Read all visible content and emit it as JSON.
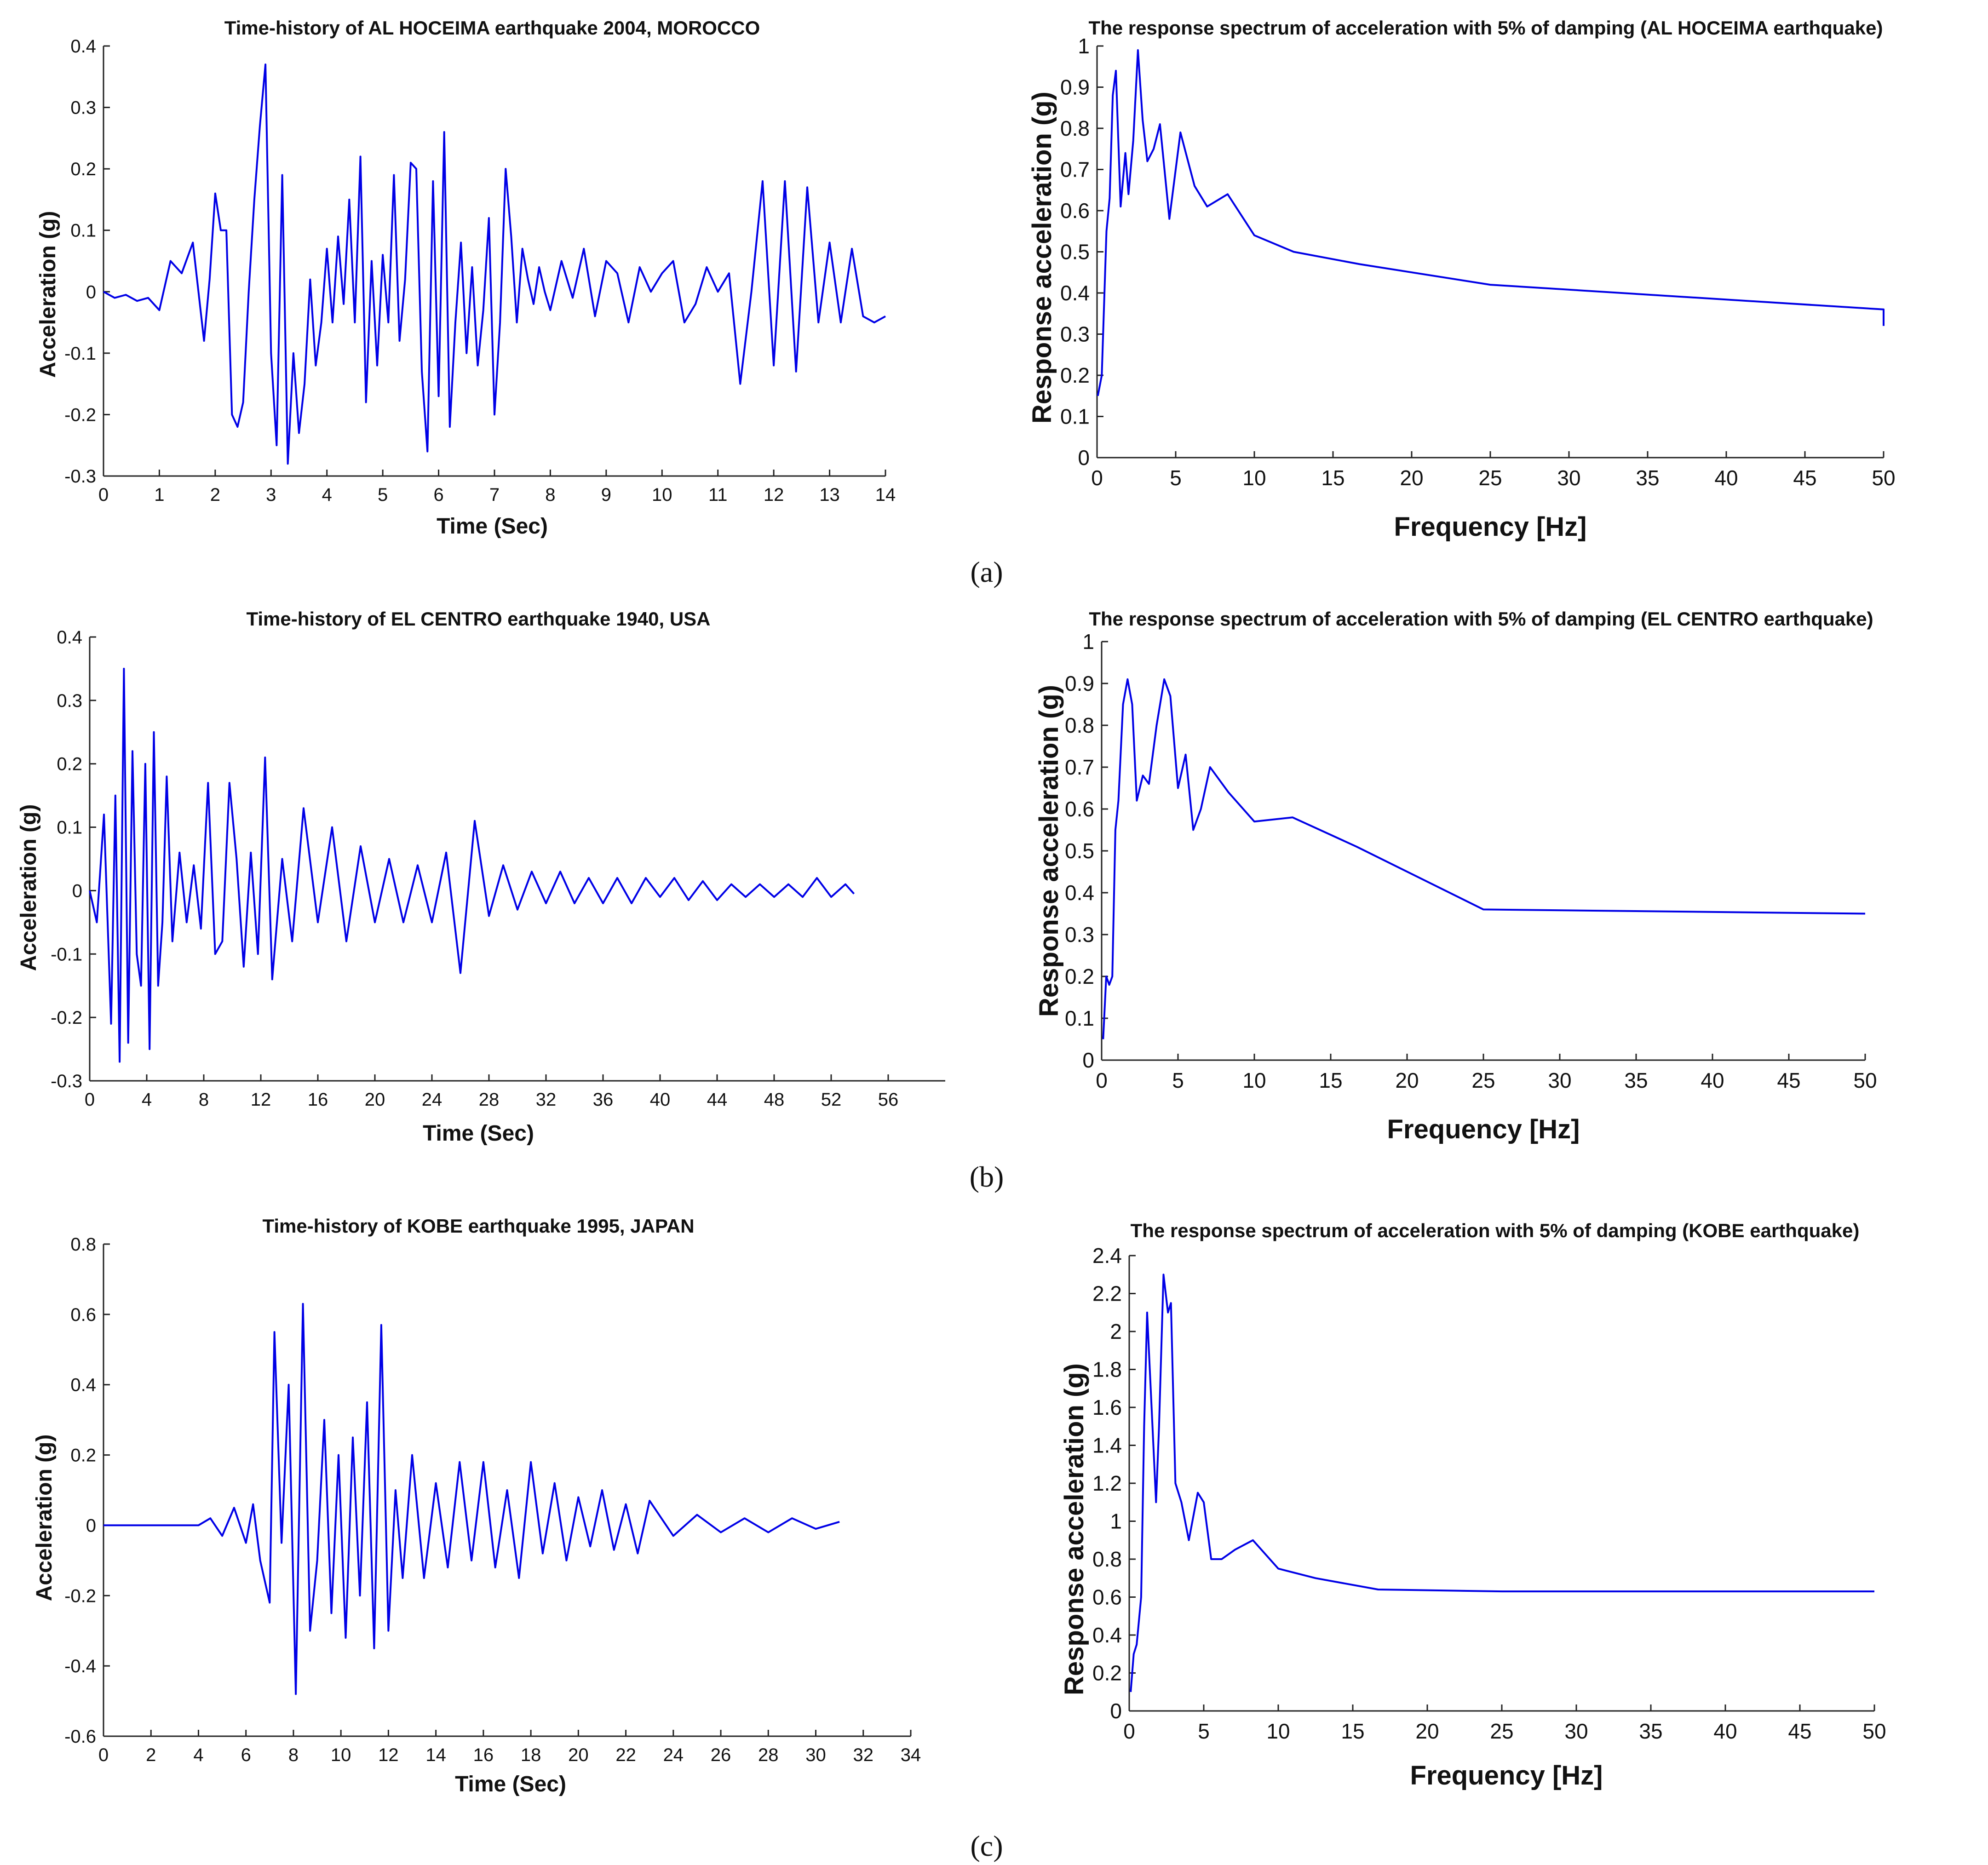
{
  "chart_data": [
    {
      "id": "th-alhoceima",
      "type": "line",
      "title": "Time-history of AL HOCEIMA earthquake 2004, MOROCCO",
      "xlabel": "Time (Sec)",
      "ylabel": "Acceleration (g)",
      "xlim": [
        0,
        14
      ],
      "ylim": [
        -0.3,
        0.4
      ],
      "xticks": [
        0,
        1,
        2,
        3,
        4,
        5,
        6,
        7,
        8,
        9,
        10,
        11,
        12,
        13,
        14
      ],
      "yticks": [
        -0.3,
        -0.2,
        -0.1,
        0,
        0.1,
        0.2,
        0.3,
        0.4
      ],
      "ytick_labels": [
        "-0.3",
        "-0.2",
        "-0.1",
        "0",
        "0.1",
        "0.2",
        "0.3",
        "0.4"
      ],
      "color": "#0000e6",
      "series": [
        {
          "name": "acceleration",
          "x": [
            0,
            0.2,
            0.4,
            0.6,
            0.8,
            1.0,
            1.2,
            1.4,
            1.6,
            1.8,
            1.9,
            2.0,
            2.1,
            2.2,
            2.3,
            2.4,
            2.5,
            2.6,
            2.7,
            2.8,
            2.9,
            3.0,
            3.1,
            3.2,
            3.3,
            3.4,
            3.5,
            3.6,
            3.7,
            3.8,
            3.9,
            4.0,
            4.1,
            4.2,
            4.3,
            4.4,
            4.5,
            4.6,
            4.7,
            4.8,
            4.9,
            5.0,
            5.1,
            5.2,
            5.3,
            5.4,
            5.5,
            5.6,
            5.7,
            5.8,
            5.9,
            6.0,
            6.1,
            6.2,
            6.3,
            6.4,
            6.5,
            6.6,
            6.7,
            6.8,
            6.9,
            7.0,
            7.1,
            7.2,
            7.3,
            7.4,
            7.5,
            7.6,
            7.7,
            7.8,
            7.9,
            8.0,
            8.2,
            8.4,
            8.6,
            8.8,
            9.0,
            9.2,
            9.4,
            9.6,
            9.8,
            10.0,
            10.2,
            10.4,
            10.6,
            10.8,
            11.0,
            11.2,
            11.4,
            11.6,
            11.8,
            12.0,
            12.2,
            12.4,
            12.6,
            12.8,
            13.0,
            13.2,
            13.4,
            13.6,
            13.8,
            14.0
          ],
          "y": [
            0,
            -0.01,
            -0.005,
            -0.015,
            -0.01,
            -0.03,
            0.05,
            0.03,
            0.08,
            -0.08,
            0.02,
            0.16,
            0.1,
            0.1,
            -0.2,
            -0.22,
            -0.18,
            0.0,
            0.15,
            0.27,
            0.37,
            -0.1,
            -0.25,
            0.19,
            -0.28,
            -0.1,
            -0.23,
            -0.15,
            0.02,
            -0.12,
            -0.05,
            0.07,
            -0.05,
            0.09,
            -0.02,
            0.15,
            -0.05,
            0.22,
            -0.18,
            0.05,
            -0.12,
            0.06,
            -0.05,
            0.19,
            -0.08,
            0.02,
            0.21,
            0.2,
            -0.13,
            -0.26,
            0.18,
            -0.17,
            0.26,
            -0.22,
            -0.05,
            0.08,
            -0.1,
            0.04,
            -0.12,
            -0.03,
            0.12,
            -0.2,
            -0.05,
            0.2,
            0.09,
            -0.05,
            0.07,
            0.02,
            -0.02,
            0.04,
            0.0,
            -0.03,
            0.05,
            -0.01,
            0.07,
            -0.04,
            0.05,
            0.03,
            -0.05,
            0.04,
            0.0,
            0.03,
            0.05,
            -0.05,
            -0.02,
            0.04,
            0.0,
            0.03,
            -0.15,
            0.0,
            0.18,
            -0.12,
            0.18,
            -0.13,
            0.17,
            -0.05,
            0.08,
            -0.05,
            0.07,
            -0.04,
            -0.05,
            -0.04
          ]
        }
      ]
    },
    {
      "id": "rs-alhoceima",
      "type": "line",
      "title": "The response spectrum of acceleration with 5% of damping (AL HOCEIMA earthquake)",
      "xlabel": "Frequency [Hz]",
      "ylabel": "Response acceleration (g)",
      "xlim": [
        0,
        50
      ],
      "ylim": [
        0,
        1
      ],
      "xticks": [
        0,
        5,
        10,
        15,
        20,
        25,
        30,
        35,
        40,
        45,
        50
      ],
      "yticks": [
        0,
        0.1,
        0.2,
        0.3,
        0.4,
        0.5,
        0.6,
        0.7,
        0.8,
        0.9,
        1
      ],
      "ytick_labels": [
        "0",
        "0.1",
        "0.2",
        "0.3",
        "0.4",
        "0.5",
        "0.6",
        "0.7",
        "0.8",
        "0.9",
        "1"
      ],
      "color": "#0000e6",
      "series": [
        {
          "name": "response acceleration",
          "x": [
            0.05,
            0.3,
            0.6,
            0.8,
            1.0,
            1.2,
            1.5,
            1.8,
            2.0,
            2.3,
            2.6,
            2.9,
            3.2,
            3.6,
            4.0,
            4.6,
            5.3,
            6.2,
            7.0,
            8.3,
            10.0,
            12.5,
            16.7,
            25.0,
            50.0,
            50.0
          ],
          "y": [
            0.15,
            0.2,
            0.55,
            0.63,
            0.88,
            0.94,
            0.61,
            0.74,
            0.64,
            0.77,
            0.99,
            0.82,
            0.72,
            0.75,
            0.81,
            0.58,
            0.79,
            0.66,
            0.61,
            0.64,
            0.54,
            0.5,
            0.47,
            0.42,
            0.36,
            0.32
          ]
        }
      ]
    },
    {
      "id": "th-elcentro",
      "type": "line",
      "title": "Time-history of EL CENTRO earthquake 1940, USA",
      "xlabel": "Time (Sec)",
      "ylabel": "Acceleration (g)",
      "xlim": [
        0,
        60
      ],
      "ylim": [
        -0.3,
        0.4
      ],
      "xticks": [
        0,
        4,
        8,
        12,
        16,
        20,
        24,
        28,
        32,
        36,
        40,
        44,
        48,
        52,
        56
      ],
      "yticks": [
        -0.3,
        -0.2,
        -0.1,
        0,
        0.1,
        0.2,
        0.3,
        0.4
      ],
      "ytick_labels": [
        "-0.3",
        "-0.2",
        "-0.1",
        "0",
        "0.1",
        "0.2",
        "0.3",
        "0.4"
      ],
      "color": "#0000e6",
      "series": [
        {
          "name": "acceleration",
          "x": [
            0,
            0.5,
            1.0,
            1.5,
            1.8,
            2.1,
            2.4,
            2.7,
            3.0,
            3.3,
            3.6,
            3.9,
            4.2,
            4.5,
            4.8,
            5.1,
            5.4,
            5.8,
            6.3,
            6.8,
            7.3,
            7.8,
            8.3,
            8.8,
            9.3,
            9.8,
            10.3,
            10.8,
            11.3,
            11.8,
            12.3,
            12.8,
            13.5,
            14.2,
            15,
            16,
            17,
            18,
            19,
            20,
            21,
            22,
            23,
            24,
            25,
            26,
            27,
            28,
            29,
            30,
            31,
            32,
            33,
            34,
            35,
            36,
            37,
            38,
            39,
            40,
            41,
            42,
            43,
            44,
            45,
            46,
            47,
            48,
            49,
            50,
            51,
            52,
            53,
            53.6
          ],
          "y": [
            0,
            -0.05,
            0.12,
            -0.21,
            0.15,
            -0.27,
            0.35,
            -0.24,
            0.22,
            -0.1,
            -0.15,
            0.2,
            -0.25,
            0.25,
            -0.15,
            -0.05,
            0.18,
            -0.08,
            0.06,
            -0.05,
            0.04,
            -0.06,
            0.17,
            -0.1,
            -0.08,
            0.17,
            0.05,
            -0.12,
            0.06,
            -0.1,
            0.21,
            -0.14,
            0.05,
            -0.08,
            0.13,
            -0.05,
            0.1,
            -0.08,
            0.07,
            -0.05,
            0.05,
            -0.05,
            0.04,
            -0.05,
            0.06,
            -0.13,
            0.11,
            -0.04,
            0.04,
            -0.03,
            0.03,
            -0.02,
            0.03,
            -0.02,
            0.02,
            -0.02,
            0.02,
            -0.02,
            0.02,
            -0.01,
            0.02,
            -0.015,
            0.015,
            -0.015,
            0.01,
            -0.01,
            0.01,
            -0.01,
            0.01,
            -0.01,
            0.02,
            -0.01,
            0.01,
            -0.005
          ]
        }
      ]
    },
    {
      "id": "rs-elcentro",
      "type": "line",
      "title": "The response spectrum of acceleration with 5% of damping (EL CENTRO earthquake)",
      "xlabel": "Frequency [Hz]",
      "ylabel": "Response acceleration (g)",
      "xlim": [
        0,
        50
      ],
      "ylim": [
        0,
        1
      ],
      "xticks": [
        0,
        5,
        10,
        15,
        20,
        25,
        30,
        35,
        40,
        45,
        50
      ],
      "yticks": [
        0,
        0.1,
        0.2,
        0.3,
        0.4,
        0.5,
        0.6,
        0.7,
        0.8,
        0.9,
        1
      ],
      "ytick_labels": [
        "0",
        "0.1",
        "0.2",
        "0.3",
        "0.4",
        "0.5",
        "0.6",
        "0.7",
        "0.8",
        "0.9",
        "1"
      ],
      "color": "#0000e6",
      "series": [
        {
          "name": "response acceleration",
          "x": [
            0.1,
            0.3,
            0.5,
            0.7,
            0.9,
            1.1,
            1.4,
            1.7,
            2.0,
            2.3,
            2.7,
            3.1,
            3.6,
            4.1,
            4.5,
            5.0,
            5.5,
            6.0,
            6.5,
            7.1,
            8.3,
            10.0,
            12.5,
            16.7,
            25.0,
            50.0
          ],
          "y": [
            0.05,
            0.2,
            0.18,
            0.2,
            0.55,
            0.62,
            0.85,
            0.91,
            0.85,
            0.62,
            0.68,
            0.66,
            0.8,
            0.91,
            0.87,
            0.65,
            0.73,
            0.55,
            0.6,
            0.7,
            0.64,
            0.57,
            0.58,
            0.51,
            0.36,
            0.35
          ]
        }
      ]
    },
    {
      "id": "th-kobe",
      "type": "line",
      "title": "Time-history of KOBE earthquake 1995, JAPAN",
      "xlabel": "Time (Sec)",
      "ylabel": "Acceleration (g)",
      "xlim": [
        0,
        34
      ],
      "ylim": [
        -0.6,
        0.8
      ],
      "xticks": [
        0,
        2,
        4,
        6,
        8,
        10,
        12,
        14,
        16,
        18,
        20,
        22,
        24,
        26,
        28,
        30,
        32,
        34
      ],
      "yticks": [
        -0.6,
        -0.4,
        -0.2,
        0,
        0.2,
        0.4,
        0.6,
        0.8
      ],
      "ytick_labels": [
        "-0.6",
        "-0.4",
        "-0.2",
        "0",
        "0.2",
        "0.4",
        "0.6",
        "0.8"
      ],
      "color": "#0000e6",
      "series": [
        {
          "name": "acceleration",
          "x": [
            0,
            4.0,
            4.5,
            5.0,
            5.5,
            6.0,
            6.3,
            6.6,
            7.0,
            7.2,
            7.5,
            7.8,
            8.1,
            8.4,
            8.7,
            9.0,
            9.3,
            9.6,
            9.9,
            10.2,
            10.5,
            10.8,
            11.1,
            11.4,
            11.7,
            12.0,
            12.3,
            12.6,
            13.0,
            13.5,
            14.0,
            14.5,
            15.0,
            15.5,
            16.0,
            16.5,
            17.0,
            17.5,
            18.0,
            18.5,
            19.0,
            19.5,
            20.0,
            20.5,
            21.0,
            21.5,
            22.0,
            22.5,
            23.0,
            24.0,
            25.0,
            26.0,
            27.0,
            28.0,
            29.0,
            30.0,
            31.0
          ],
          "y": [
            0,
            0,
            0.02,
            -0.03,
            0.05,
            -0.05,
            0.06,
            -0.1,
            -0.22,
            0.55,
            -0.05,
            0.4,
            -0.48,
            0.63,
            -0.3,
            -0.1,
            0.3,
            -0.25,
            0.2,
            -0.32,
            0.25,
            -0.2,
            0.35,
            -0.35,
            0.57,
            -0.3,
            0.1,
            -0.15,
            0.2,
            -0.15,
            0.12,
            -0.12,
            0.18,
            -0.1,
            0.18,
            -0.12,
            0.1,
            -0.15,
            0.18,
            -0.08,
            0.12,
            -0.1,
            0.08,
            -0.06,
            0.1,
            -0.07,
            0.06,
            -0.08,
            0.07,
            -0.03,
            0.03,
            -0.02,
            0.02,
            -0.02,
            0.02,
            -0.01,
            0.01
          ]
        }
      ]
    },
    {
      "id": "rs-kobe",
      "type": "line",
      "title": "The response spectrum of acceleration with 5% of damping (KOBE earthquake)",
      "xlabel": "Frequency [Hz]",
      "ylabel": "Response acceleration (g)",
      "xlim": [
        0,
        50
      ],
      "ylim": [
        0,
        2.4
      ],
      "xticks": [
        0,
        5,
        10,
        15,
        20,
        25,
        30,
        35,
        40,
        45,
        50
      ],
      "yticks": [
        0,
        0.2,
        0.4,
        0.6,
        0.8,
        1,
        1.2,
        1.4,
        1.6,
        1.8,
        2,
        2.2,
        2.4
      ],
      "ytick_labels": [
        "0",
        "0.2",
        "0.4",
        "0.6",
        "0.8",
        "1",
        "1.2",
        "1.4",
        "1.6",
        "1.8",
        "2",
        "2.2",
        "2.4"
      ],
      "color": "#0000e6",
      "series": [
        {
          "name": "response acceleration",
          "x": [
            0.1,
            0.3,
            0.5,
            0.8,
            1.0,
            1.2,
            1.5,
            1.8,
            2.0,
            2.3,
            2.6,
            2.8,
            3.1,
            3.5,
            4.0,
            4.6,
            5.0,
            5.5,
            6.2,
            7.1,
            8.3,
            10.0,
            12.5,
            16.7,
            25.0,
            50.0
          ],
          "y": [
            0.1,
            0.3,
            0.35,
            0.6,
            1.5,
            2.1,
            1.6,
            1.1,
            1.5,
            2.3,
            2.1,
            2.15,
            1.2,
            1.1,
            0.9,
            1.15,
            1.1,
            0.8,
            0.8,
            0.85,
            0.9,
            0.75,
            0.7,
            0.64,
            0.63,
            0.63
          ]
        }
      ]
    }
  ],
  "captions": [
    "(a)",
    "(b)",
    "(c)"
  ]
}
